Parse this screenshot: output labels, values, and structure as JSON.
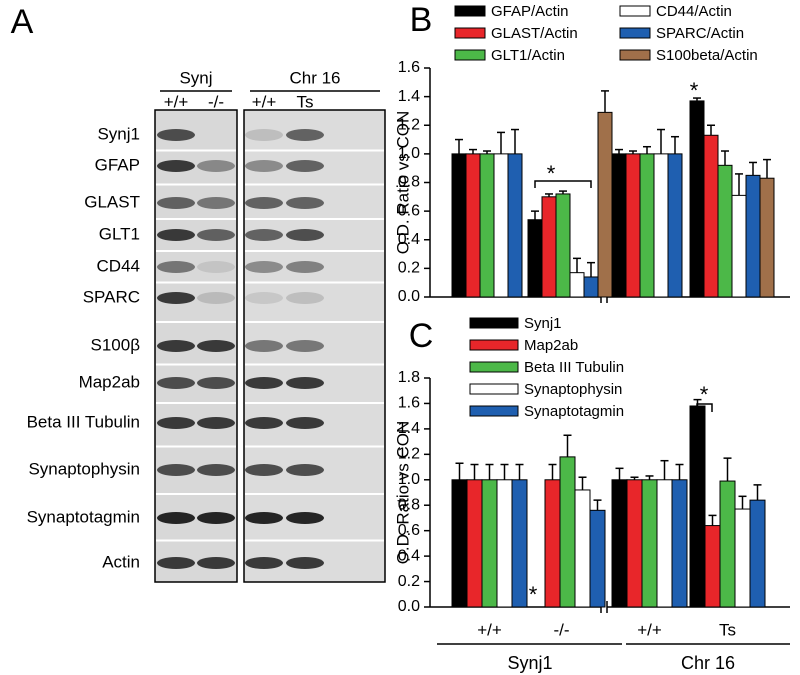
{
  "panel_a": {
    "label": "A",
    "groups": [
      {
        "name": "Synj",
        "lanes": [
          "+/+",
          "-/-"
        ]
      },
      {
        "name": "Chr 16",
        "lanes": [
          "+/+",
          "Ts"
        ]
      }
    ],
    "rows": [
      "Synj1",
      "GFAP",
      "GLAST",
      "GLT1",
      "CD44",
      "SPARC",
      "S100β",
      "Map2ab",
      "Beta III Tubulin",
      "Synaptophysin",
      "Synaptotagmin",
      "Actin"
    ]
  },
  "chart_data": [
    {
      "type": "bar",
      "panel_label": "B",
      "y_label": "O.D. Ratio vs CON",
      "categories": [
        null,
        null,
        null,
        null
      ],
      "ylim": [
        0,
        1.6
      ],
      "yticks": [
        {
          "value": 0,
          "label": "0.0"
        },
        0.2,
        0.4,
        0.6,
        0.8,
        {
          "value": 1,
          "label": "1.0"
        },
        1.2,
        1.4,
        1.6
      ],
      "series": [
        {
          "name": "GFAP/Actin",
          "color": "#000000",
          "values": [
            1.0,
            0.54,
            1.0,
            1.37
          ],
          "errors": [
            0.1,
            0.06,
            0.03,
            0.02
          ]
        },
        {
          "name": "GLAST/Actin",
          "color": "#e8262a",
          "values": [
            1.0,
            0.7,
            1.0,
            1.13
          ],
          "errors": [
            0.03,
            0.02,
            0.02,
            0.07
          ]
        },
        {
          "name": "GLT1/Actin",
          "color": "#4cb848",
          "values": [
            1.0,
            0.72,
            1.0,
            0.92
          ],
          "errors": [
            0.02,
            0.02,
            0.05,
            0.1
          ]
        },
        {
          "name": "CD44/Actin",
          "color": "#ffffff",
          "values": [
            1.0,
            0.17,
            1.0,
            0.71
          ],
          "errors": [
            0.15,
            0.1,
            0.17,
            0.15
          ]
        },
        {
          "name": "SPARC/Actin",
          "color": "#1f5fb0",
          "values": [
            1.0,
            0.14,
            1.0,
            0.85
          ],
          "errors": [
            0.17,
            0.1,
            0.12,
            0.09
          ]
        },
        {
          "name": "S100beta/Actin",
          "color": "#a0704a",
          "values": [
            null,
            1.29,
            null,
            0.83
          ],
          "errors": [
            null,
            0.15,
            null,
            0.13
          ]
        }
      ],
      "annotations": [
        {
          "text": "*"
        },
        {
          "text": "*"
        }
      ]
    },
    {
      "type": "bar",
      "panel_label": "C",
      "y_label": "O.D. Ratio vs CON",
      "categories": [
        "+/+",
        "-/-",
        "+/+",
        "Ts"
      ],
      "group_labels": [
        "Synj1",
        "Chr 16"
      ],
      "ylim": [
        0,
        1.8
      ],
      "yticks": [
        {
          "value": 0,
          "label": "0.0"
        },
        0.2,
        0.4,
        0.6,
        0.8,
        {
          "value": 1,
          "label": "1.0"
        },
        1.2,
        1.4,
        1.6,
        1.8
      ],
      "series": [
        {
          "name": "Synj1",
          "color": "#000000",
          "values": [
            1.0,
            0,
            1.0,
            1.58
          ],
          "errors": [
            0.13,
            null,
            0.09,
            0.05
          ]
        },
        {
          "name": "Map2ab",
          "color": "#e8262a",
          "values": [
            1.0,
            1.0,
            1.0,
            0.64
          ],
          "errors": [
            0.12,
            0.12,
            0.02,
            0.08
          ]
        },
        {
          "name": "Beta III Tubulin",
          "color": "#4cb848",
          "values": [
            1.0,
            1.18,
            1.0,
            0.99
          ],
          "errors": [
            0.12,
            0.17,
            0.03,
            0.18
          ]
        },
        {
          "name": "Synaptophysin",
          "color": "#ffffff",
          "values": [
            1.0,
            0.92,
            1.0,
            0.77
          ],
          "errors": [
            0.12,
            0.1,
            0.15,
            0.1
          ]
        },
        {
          "name": "Synaptotagmin",
          "color": "#1f5fb0",
          "values": [
            1.0,
            0.76,
            1.0,
            0.84
          ],
          "errors": [
            0.12,
            0.08,
            0.12,
            0.12
          ]
        }
      ],
      "annotations": [
        {
          "text": "*"
        },
        {
          "text": "*"
        }
      ]
    }
  ]
}
